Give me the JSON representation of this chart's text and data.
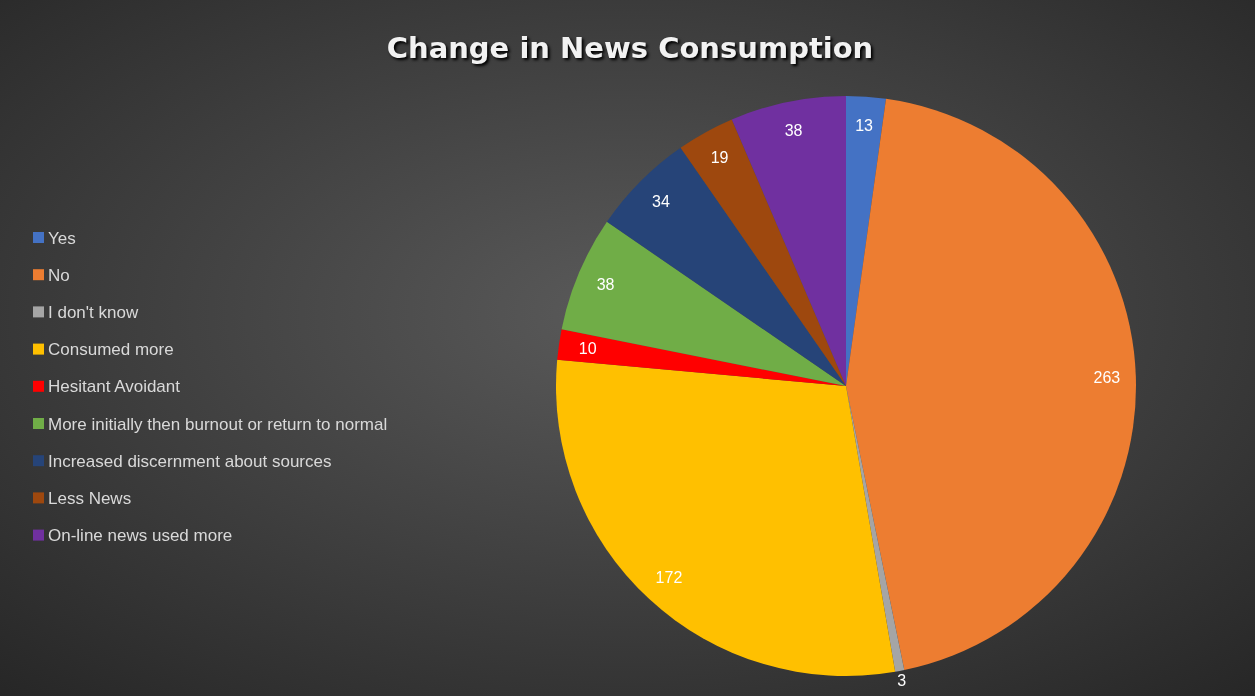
{
  "chart_data": {
    "type": "pie",
    "title": "Change in News Consumption",
    "categories": [
      "Yes",
      "No",
      "I don't know",
      "Consumed more",
      "Hesitant Avoidant",
      "More initially then burnout or return to normal",
      "Increased discernment about sources",
      "Less News",
      "On-line news used more"
    ],
    "values": [
      13,
      263,
      3,
      172,
      10,
      38,
      34,
      19,
      38
    ],
    "colors": [
      "#4472c4",
      "#ed7d31",
      "#a5a5a5",
      "#ffc000",
      "#ff0000",
      "#70ad47",
      "#264478",
      "#9e480e",
      "#7030a0"
    ],
    "data_labels": true,
    "legend": "left"
  }
}
